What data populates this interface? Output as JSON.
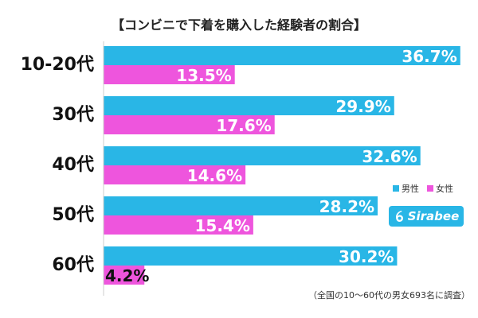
{
  "title": "【コンビニで下着を購入した経験者の割合】",
  "legend": {
    "male_label": "男性",
    "female_label": "女性"
  },
  "logo": {
    "text": "Sirabee"
  },
  "footnote": "（全国の10〜60代の男女693名に調査）",
  "colors": {
    "male": "#29b6e6",
    "female": "#ee55dd",
    "label_text": "#ffffff",
    "category_text": "#111111",
    "logo_bg": "#29b6e6"
  },
  "chart_data": {
    "type": "bar",
    "orientation": "horizontal",
    "title": "【コンビニで下着を購入した経験者の割合】",
    "categories": [
      "10-20代",
      "30代",
      "40代",
      "50代",
      "60代"
    ],
    "series": [
      {
        "name": "男性",
        "values": [
          36.7,
          29.9,
          32.6,
          28.2,
          30.2
        ],
        "labels": [
          "36.7%",
          "29.9%",
          "32.6%",
          "28.2%",
          "30.2%"
        ]
      },
      {
        "name": "女性",
        "values": [
          13.5,
          17.6,
          14.6,
          15.4,
          4.2
        ],
        "labels": [
          "13.5%",
          "17.6%",
          "14.6%",
          "15.4%",
          "4.2%"
        ]
      }
    ],
    "xlim": [
      0,
      40
    ],
    "grid": false,
    "legend_position": "right"
  }
}
